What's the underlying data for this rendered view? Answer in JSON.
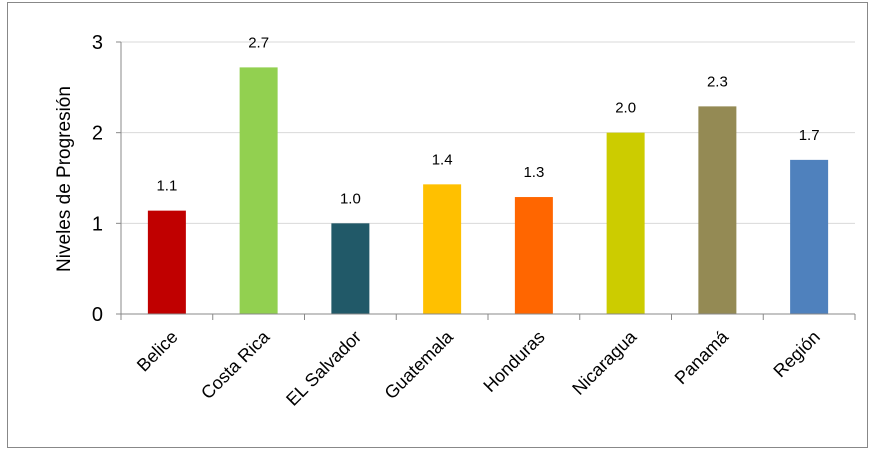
{
  "chart_data": {
    "type": "bar",
    "categories": [
      "Belice",
      "Costa Rica",
      "EL Salvador",
      "Guatemala",
      "Honduras",
      "Nicaragua",
      "Panamá",
      "Región"
    ],
    "values": [
      1.14,
      2.72,
      1.0,
      1.43,
      1.29,
      2.0,
      2.29,
      1.7
    ],
    "data_labels": [
      "1.1",
      "2.7",
      "1.0",
      "1.4",
      "1.3",
      "2.0",
      "2.3",
      "1.7"
    ],
    "colors": [
      "#c00000",
      "#92d050",
      "#215968",
      "#ffc000",
      "#ff6600",
      "#cccc00",
      "#948a54",
      "#4f81bd"
    ],
    "title": "",
    "xlabel": "",
    "ylabel": "Niveles de Progresión",
    "ylim": [
      0,
      3
    ],
    "yticks": [
      "0",
      "1",
      "2",
      "3"
    ],
    "grid": true,
    "legend": "none"
  }
}
